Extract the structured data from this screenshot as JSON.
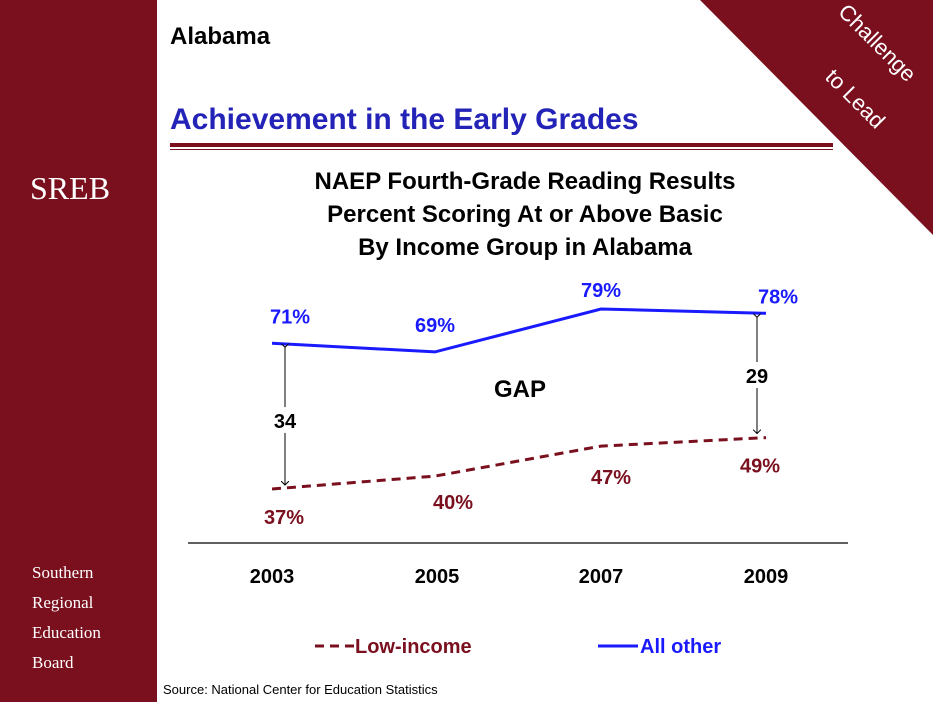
{
  "header": {
    "state": "Alabama",
    "title": "Achievement in the Early Grades",
    "corner_badge": [
      "Challenge",
      "to Lead"
    ]
  },
  "sidebar": {
    "logo": "SREB",
    "org_lines": [
      "Southern",
      "Regional",
      "Education",
      "Board"
    ]
  },
  "source": "Source: National Center for Education Statistics",
  "colors": {
    "brand": "#7a0f1e",
    "title_blue": "#2323b8",
    "all_other": "#1a1aff",
    "low_income": "#7a0f1e"
  },
  "chart_data": {
    "type": "line",
    "title": [
      "NAEP Fourth-Grade Reading Results",
      "Percent Scoring At or Above Basic",
      "By Income Group in Alabama"
    ],
    "x": [
      "2003",
      "2005",
      "2007",
      "2009"
    ],
    "series": [
      {
        "name": "All other",
        "values": [
          71,
          69,
          79,
          78
        ],
        "labels": [
          "71%",
          "69%",
          "79%",
          "78%"
        ],
        "style": "solid"
      },
      {
        "name": "Low-income",
        "values": [
          37,
          40,
          47,
          49
        ],
        "labels": [
          "37%",
          "40%",
          "47%",
          "49%"
        ],
        "style": "dashed"
      }
    ],
    "annotations": {
      "gap_label": "GAP",
      "gap_start": "34",
      "gap_end": "29"
    },
    "legend": "bottom",
    "grid": false
  }
}
